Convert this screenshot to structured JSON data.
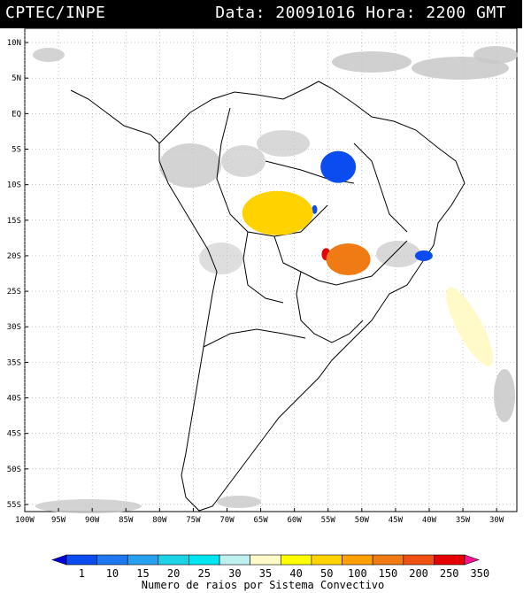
{
  "header": {
    "source": "CPTEC/INPE",
    "datetime": "Data: 20091016 Hora: 2200 GMT"
  },
  "map": {
    "lat_labels": [
      "10N",
      "5N",
      "EQ",
      "5S",
      "10S",
      "15S",
      "20S",
      "25S",
      "30S",
      "35S",
      "40S",
      "45S",
      "50S",
      "55S"
    ],
    "lon_labels": [
      "100W",
      "95W",
      "90W",
      "85W",
      "80W",
      "75W",
      "70W",
      "65W",
      "60W",
      "55W",
      "50W",
      "45W",
      "40W",
      "35W",
      "30W"
    ],
    "lat_range": [
      -56,
      12
    ],
    "lon_range": [
      -100,
      -27
    ],
    "grid": "dotted",
    "colors": {
      "land_outline": "#000000",
      "cloud": "#c8c8c8",
      "grid": "#999999"
    },
    "systems": [
      {
        "name": "blue-system-north",
        "lat": -7.5,
        "lon": -53.5,
        "class": "10",
        "color": "#0a4cf0"
      },
      {
        "name": "blue-system-small",
        "lat": -13.5,
        "lon": -57.0,
        "class": "10",
        "color": "#0a4cf0"
      },
      {
        "name": "yellow-system-large",
        "lat": -14.0,
        "lon": -62.5,
        "class": "50",
        "color": "#ffd200"
      },
      {
        "name": "red-system",
        "lat": -19.8,
        "lon": -55.3,
        "class": "350",
        "color": "#e60000"
      },
      {
        "name": "orange-system",
        "lat": -20.5,
        "lon": -52.0,
        "class": "200",
        "color": "#f07a14"
      },
      {
        "name": "blue-system-east",
        "lat": -20.0,
        "lon": -40.8,
        "class": "10",
        "color": "#0a4cf0"
      },
      {
        "name": "pale-system-atlantic",
        "lat": -30.0,
        "lon": -34.0,
        "class": "35",
        "color": "#fffac8"
      }
    ]
  },
  "legend": {
    "values": [
      "1",
      "10",
      "15",
      "20",
      "25",
      "30",
      "35",
      "40",
      "50",
      "100",
      "150",
      "200",
      "250",
      "350"
    ],
    "colors": [
      "#0000dc",
      "#0a4cf0",
      "#1e78f0",
      "#28a0f0",
      "#1ed2e6",
      "#00e6f0",
      "#bef0f0",
      "#fffac8",
      "#ffff00",
      "#ffd200",
      "#ffa000",
      "#f07a14",
      "#f05014",
      "#e60000",
      "#ff1493"
    ],
    "caption": "Numero de raios por Sistema Convectivo"
  }
}
